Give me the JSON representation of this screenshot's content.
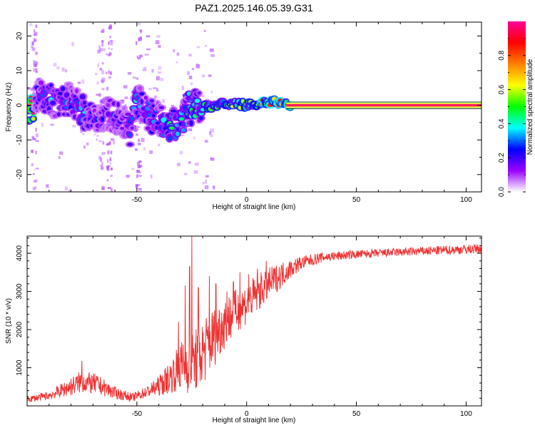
{
  "figure_title": "PAZ1.2025.146.05.39.G31",
  "chart_data": [
    {
      "type": "heatmap",
      "title": "",
      "xlabel": "Height of straight line (km)",
      "ylabel": "Frequency (Hz)",
      "xlim": [
        -100,
        107
      ],
      "ylim": [
        -25,
        24
      ],
      "xticks": [
        -50,
        0,
        50,
        100
      ],
      "yticks": [
        -20,
        -10,
        0,
        10,
        20
      ],
      "xtick_labels": [
        "-50",
        "0",
        "50",
        "100"
      ],
      "ytick_labels": [
        "-20",
        "-10",
        "0",
        "10",
        "20"
      ],
      "colorbar": {
        "label": "Normalized spectral amplitude",
        "range": [
          0,
          1
        ],
        "ticks": [
          0.0,
          0.2,
          0.4,
          0.6,
          0.8
        ],
        "tick_labels": [
          "0.0",
          "0.2",
          "0.4",
          "0.6",
          "0.8"
        ],
        "colors": [
          "#ffffff",
          "#9900ff",
          "#0000ff",
          "#00ffff",
          "#00ff00",
          "#ffff00",
          "#ff8000",
          "#ff0000",
          "#ff0099"
        ]
      },
      "peak_track": [
        {
          "x": -97,
          "f": 3.0,
          "a": 0.3
        },
        {
          "x": -90,
          "f": 2.0,
          "a": 0.35
        },
        {
          "x": -86,
          "f": 0.0,
          "a": 0.4
        },
        {
          "x": -80,
          "f": 2.0,
          "a": 0.3
        },
        {
          "x": -76,
          "f": -1.0,
          "a": 0.35
        },
        {
          "x": -72,
          "f": -3.0,
          "a": 0.3
        },
        {
          "x": -68,
          "f": -5.0,
          "a": 0.25
        },
        {
          "x": -64,
          "f": -2.0,
          "a": 0.3
        },
        {
          "x": -60,
          "f": -3.0,
          "a": 0.3
        },
        {
          "x": -56,
          "f": -5.0,
          "a": 0.25
        },
        {
          "x": -53,
          "f": -7.0,
          "a": 0.3
        },
        {
          "x": -50,
          "f": 2.0,
          "a": 0.4
        },
        {
          "x": -47,
          "f": -1.0,
          "a": 0.3
        },
        {
          "x": -44,
          "f": -3.0,
          "a": 0.35
        },
        {
          "x": -40,
          "f": -4.0,
          "a": 0.3
        },
        {
          "x": -36,
          "f": -6.0,
          "a": 0.45
        },
        {
          "x": -32,
          "f": -5.0,
          "a": 0.45
        },
        {
          "x": -29,
          "f": -3.0,
          "a": 0.4
        },
        {
          "x": -26,
          "f": -1.0,
          "a": 0.5
        },
        {
          "x": -22,
          "f": 0.0,
          "a": 0.45
        },
        {
          "x": -18,
          "f": -0.5,
          "a": 0.5
        },
        {
          "x": -14,
          "f": 0.0,
          "a": 0.45
        },
        {
          "x": -10,
          "f": 0.5,
          "a": 0.55
        },
        {
          "x": -5,
          "f": 0.5,
          "a": 0.6
        },
        {
          "x": 0,
          "f": 0.0,
          "a": 0.65
        },
        {
          "x": 5,
          "f": 0.5,
          "a": 0.7
        },
        {
          "x": 9,
          "f": 1.0,
          "a": 0.8
        },
        {
          "x": 13,
          "f": 1.0,
          "a": 0.75
        },
        {
          "x": 18,
          "f": 0.0,
          "a": 0.85
        },
        {
          "x": 25,
          "f": 0.0,
          "a": 0.95
        },
        {
          "x": 107,
          "f": 0.0,
          "a": 1.0
        }
      ],
      "steady_line": {
        "x_start": 18,
        "x_end": 107,
        "f": 0.0
      }
    },
    {
      "type": "line",
      "title": "",
      "xlabel": "Height of straight line (km)",
      "ylabel": "SNR (10 * v/v)",
      "xlim": [
        -100,
        107
      ],
      "ylim": [
        0,
        4450
      ],
      "xticks": [
        -50,
        0,
        50,
        100
      ],
      "yticks": [
        1000,
        2000,
        3000,
        4000
      ],
      "xtick_labels": [
        "-50",
        "0",
        "50",
        "100"
      ],
      "ytick_labels": [
        "1000",
        "2000",
        "3000",
        "4000"
      ],
      "line_color": "#ee3333",
      "series": [
        {
          "name": "SNR",
          "envelope": [
            {
              "x": -100,
              "mean": 170,
              "amp": 80
            },
            {
              "x": -90,
              "mean": 270,
              "amp": 110
            },
            {
              "x": -82,
              "mean": 460,
              "amp": 220
            },
            {
              "x": -75,
              "mean": 640,
              "amp": 300
            },
            {
              "x": -68,
              "mean": 560,
              "amp": 260
            },
            {
              "x": -60,
              "mean": 340,
              "amp": 160
            },
            {
              "x": -52,
              "mean": 220,
              "amp": 110
            },
            {
              "x": -45,
              "mean": 380,
              "amp": 160
            },
            {
              "x": -40,
              "mean": 520,
              "amp": 260
            },
            {
              "x": -35,
              "mean": 750,
              "amp": 420
            },
            {
              "x": -30,
              "mean": 1050,
              "amp": 650
            },
            {
              "x": -25,
              "mean": 1100,
              "amp": 800
            },
            {
              "x": -20,
              "mean": 1400,
              "amp": 900
            },
            {
              "x": -15,
              "mean": 1800,
              "amp": 800
            },
            {
              "x": -10,
              "mean": 2200,
              "amp": 700
            },
            {
              "x": -5,
              "mean": 2450,
              "amp": 600
            },
            {
              "x": 0,
              "mean": 2700,
              "amp": 550
            },
            {
              "x": 5,
              "mean": 2950,
              "amp": 500
            },
            {
              "x": 10,
              "mean": 3200,
              "amp": 420
            },
            {
              "x": 15,
              "mean": 3400,
              "amp": 350
            },
            {
              "x": 20,
              "mean": 3600,
              "amp": 250
            },
            {
              "x": 25,
              "mean": 3750,
              "amp": 180
            },
            {
              "x": 35,
              "mean": 3900,
              "amp": 130
            },
            {
              "x": 50,
              "mean": 3970,
              "amp": 110
            },
            {
              "x": 70,
              "mean": 4030,
              "amp": 110
            },
            {
              "x": 90,
              "mean": 4080,
              "amp": 120
            },
            {
              "x": 107,
              "mean": 4120,
              "amp": 130
            }
          ],
          "spikes": [
            {
              "x": -75,
              "y": 1180
            },
            {
              "x": -25,
              "y": 4450
            },
            {
              "x": -26,
              "y": 3650
            },
            {
              "x": -28,
              "y": 3150
            },
            {
              "x": -31,
              "y": 2200
            },
            {
              "x": -22,
              "y": 3100
            },
            {
              "x": -17,
              "y": 3400
            },
            {
              "x": -14,
              "y": 3200
            },
            {
              "x": -9,
              "y": 3000
            },
            {
              "x": -6,
              "y": 3250
            },
            {
              "x": -3,
              "y": 3500
            },
            {
              "x": 1,
              "y": 3450
            },
            {
              "x": 5,
              "y": 3600
            },
            {
              "x": 9,
              "y": 3800
            }
          ]
        }
      ]
    }
  ]
}
